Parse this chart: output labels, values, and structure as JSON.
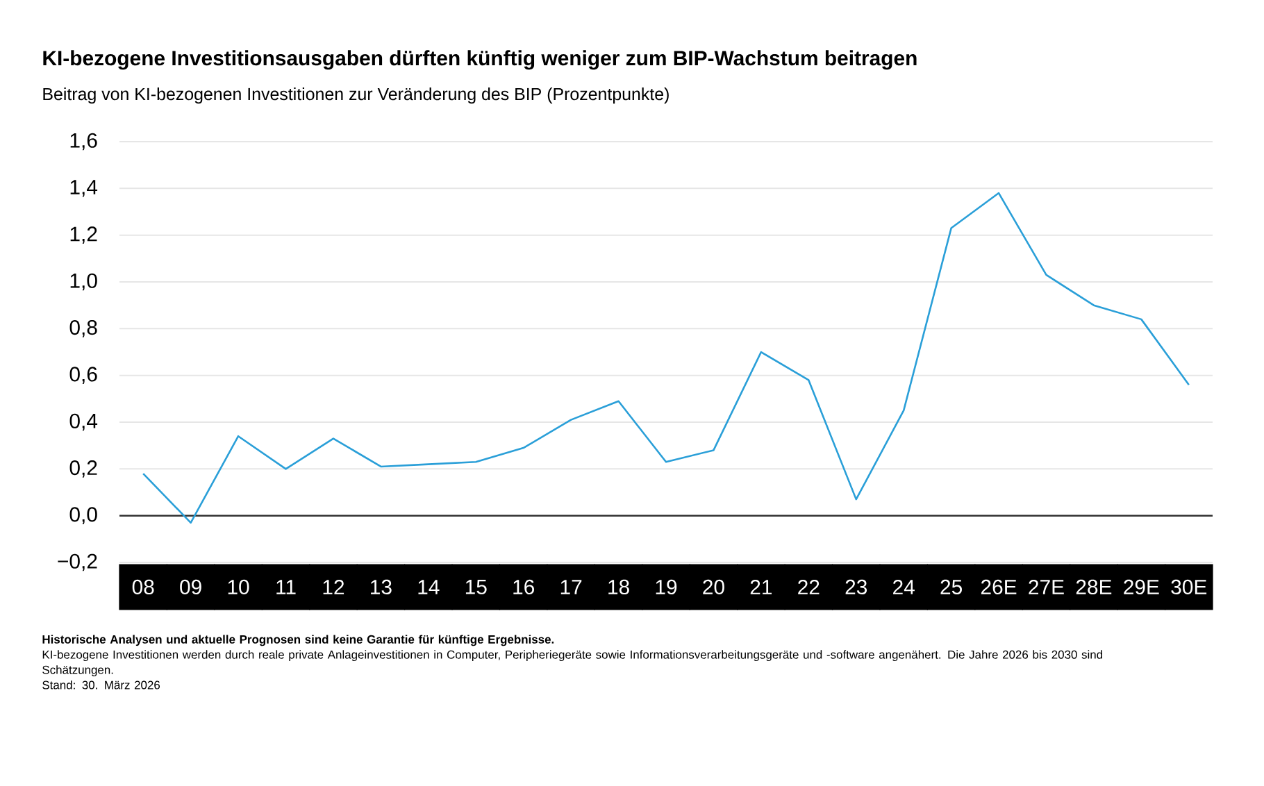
{
  "chart_data": {
    "type": "line",
    "title": "KI-bezogene Investitionsausgaben dürften künftig weniger zum BIP-Wachstum beitragen",
    "subtitle": "Beitrag von KI-bezogenen Investitionen zur Veränderung des BIP (Prozentpunkte)",
    "categories": [
      "08",
      "09",
      "10",
      "11",
      "12",
      "13",
      "14",
      "15",
      "16",
      "17",
      "18",
      "19",
      "20",
      "21",
      "22",
      "23",
      "24",
      "25",
      "26E",
      "27E",
      "28E",
      "29E",
      "30E"
    ],
    "series": [
      {
        "color": "#2a9fd8",
        "values": [
          0.18,
          -0.03,
          0.34,
          0.2,
          0.33,
          0.21,
          0.22,
          0.23,
          0.29,
          0.41,
          0.49,
          0.23,
          0.28,
          0.7,
          0.58,
          0.07,
          0.45,
          1.23,
          1.38,
          1.03,
          0.9,
          0.84,
          0.56
        ]
      }
    ],
    "ylim": [
      -0.2,
      1.6
    ],
    "yticks": [
      {
        "value": -0.2,
        "label": "−0,2"
      },
      {
        "value": 0,
        "label": "0,0"
      },
      {
        "value": 0.2,
        "label": "0,2"
      },
      {
        "value": 0.4,
        "label": "0,4"
      },
      {
        "value": 0.6,
        "label": "0,6"
      },
      {
        "value": 0.8,
        "label": "0,8"
      },
      {
        "value": 1.0,
        "label": "1,0"
      },
      {
        "value": 1.2,
        "label": "1,2"
      },
      {
        "value": 1.4,
        "label": "1,4"
      },
      {
        "value": 1.6,
        "label": "1,6"
      }
    ],
    "grid": "y",
    "ref_lines": [
      {
        "axis": "y",
        "value": 0,
        "color": "#333333"
      }
    ],
    "annotations": [
      "Historische Analysen und aktuelle Prognosen sind keine Garantie für künftige Ergebnisse.",
      "KI-bezogene Investitionen werden durch reale private Anlageinvestitionen in Computer, Peripheriegeräte sowie Informationsverarbeitungsgeräte und -software angenähert. Die Jahre 2026 bis 2030 sind Schätzungen.",
      "Stand: 30. März 2026"
    ]
  }
}
